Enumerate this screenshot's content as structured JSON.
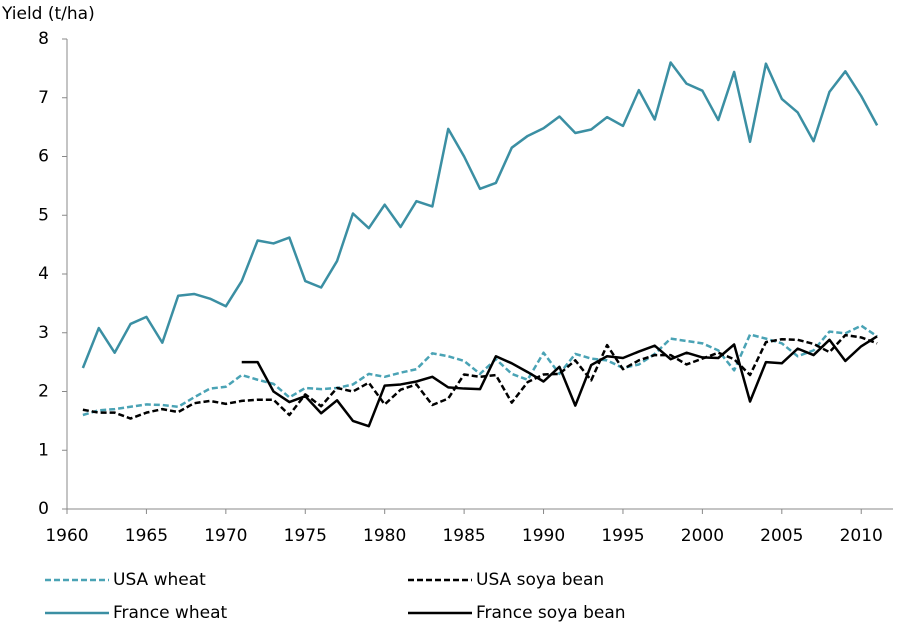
{
  "chart_data": {
    "type": "line",
    "y_label": "Yield (t/ha)",
    "x": [
      1961,
      1962,
      1963,
      1964,
      1965,
      1966,
      1967,
      1968,
      1969,
      1970,
      1971,
      1972,
      1973,
      1974,
      1975,
      1976,
      1977,
      1978,
      1979,
      1980,
      1981,
      1982,
      1983,
      1984,
      1985,
      1986,
      1987,
      1988,
      1989,
      1990,
      1991,
      1992,
      1993,
      1994,
      1995,
      1996,
      1997,
      1998,
      1999,
      2000,
      2001,
      2002,
      2003,
      2004,
      2005,
      2006,
      2007,
      2008,
      2009,
      2010,
      2011
    ],
    "series": [
      {
        "name": "USA wheat",
        "color": "#4aa3b5",
        "dashed": true,
        "values": [
          1.6,
          1.68,
          1.7,
          1.74,
          1.78,
          1.77,
          1.74,
          1.9,
          2.05,
          2.08,
          2.28,
          2.2,
          2.13,
          1.9,
          2.06,
          2.04,
          2.06,
          2.12,
          2.3,
          2.25,
          2.32,
          2.38,
          2.65,
          2.6,
          2.52,
          2.3,
          2.55,
          2.3,
          2.2,
          2.66,
          2.3,
          2.64,
          2.56,
          2.53,
          2.4,
          2.46,
          2.64,
          2.9,
          2.86,
          2.82,
          2.7,
          2.36,
          2.97,
          2.9,
          2.82,
          2.6,
          2.7,
          3.02,
          2.99,
          3.12,
          2.94
        ]
      },
      {
        "name": "USA soya bean",
        "color": "#000000",
        "dashed": true,
        "values": [
          1.69,
          1.64,
          1.64,
          1.54,
          1.64,
          1.7,
          1.65,
          1.8,
          1.84,
          1.79,
          1.84,
          1.86,
          1.86,
          1.6,
          1.95,
          1.75,
          2.06,
          2.0,
          2.15,
          1.78,
          2.03,
          2.12,
          1.77,
          1.88,
          2.29,
          2.25,
          2.28,
          1.81,
          2.16,
          2.29,
          2.3,
          2.53,
          2.19,
          2.79,
          2.38,
          2.53,
          2.62,
          2.62,
          2.46,
          2.56,
          2.66,
          2.55,
          2.28,
          2.84,
          2.89,
          2.88,
          2.81,
          2.67,
          2.96,
          2.92,
          2.82
        ]
      },
      {
        "name": "France wheat",
        "color": "#3b8fa3",
        "dashed": false,
        "values": [
          2.4,
          3.08,
          2.66,
          3.15,
          3.27,
          2.83,
          3.63,
          3.66,
          3.58,
          3.45,
          3.88,
          4.57,
          4.52,
          4.62,
          3.88,
          3.77,
          4.22,
          5.03,
          4.78,
          5.18,
          4.8,
          5.24,
          5.15,
          6.47,
          6.0,
          5.45,
          5.55,
          6.15,
          6.35,
          6.48,
          6.68,
          6.4,
          6.46,
          6.67,
          6.52,
          7.13,
          6.63,
          7.6,
          7.24,
          7.12,
          6.62,
          7.44,
          6.25,
          7.58,
          6.98,
          6.75,
          6.26,
          7.1,
          7.45,
          7.03,
          6.53
        ]
      },
      {
        "name": "France soya bean",
        "color": "#000000",
        "dashed": false,
        "values": [
          null,
          null,
          null,
          null,
          null,
          null,
          null,
          null,
          null,
          null,
          2.5,
          2.5,
          2.0,
          1.82,
          1.92,
          1.63,
          1.85,
          1.5,
          1.41,
          2.1,
          2.12,
          2.17,
          2.25,
          2.07,
          2.05,
          2.04,
          2.6,
          2.48,
          2.33,
          2.17,
          2.42,
          1.76,
          2.45,
          2.6,
          2.57,
          2.68,
          2.78,
          2.55,
          2.66,
          2.58,
          2.57,
          2.8,
          1.83,
          2.5,
          2.48,
          2.73,
          2.62,
          2.88,
          2.52,
          2.77,
          2.94
        ]
      }
    ],
    "xlim": [
      1960,
      2012
    ],
    "xticks": [
      1960,
      1965,
      1970,
      1975,
      1980,
      1985,
      1990,
      1995,
      2000,
      2005,
      2010
    ],
    "ylim": [
      0,
      8
    ],
    "yticks": [
      0,
      1,
      2,
      3,
      4,
      5,
      6,
      7,
      8
    ],
    "grid": false,
    "legend": "bottom"
  }
}
